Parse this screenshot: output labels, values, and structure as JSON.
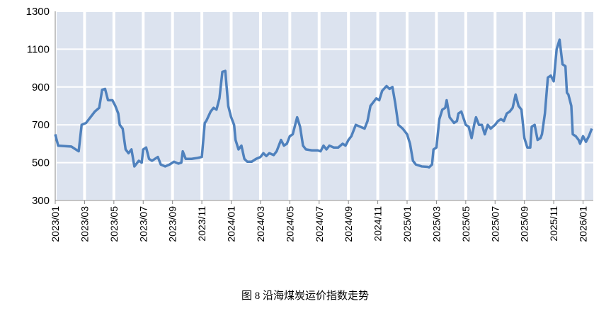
{
  "chart_data": {
    "type": "line",
    "title": "图 8 沿海煤炭运价指数走势",
    "x": [
      0,
      0.2,
      1.1,
      1.4,
      1.6,
      1.8,
      2.1,
      2.4,
      2.7,
      3.0,
      3.2,
      3.4,
      3.6,
      3.9,
      4.1,
      4.3,
      4.4,
      4.6,
      4.8,
      5.0,
      5.2,
      5.4,
      5.7,
      5.9,
      6.0,
      6.2,
      6.4,
      6.6,
      7.0,
      7.2,
      7.5,
      7.8,
      8.1,
      8.4,
      8.6,
      8.7,
      8.9,
      9.3,
      9.7,
      10.0,
      10.2,
      10.3,
      10.6,
      10.8,
      11.0,
      11.2,
      11.4,
      11.6,
      11.8,
      12.0,
      12.2,
      12.3,
      12.5,
      12.7,
      12.9,
      13.1,
      13.4,
      13.7,
      14.0,
      14.2,
      14.4,
      14.6,
      14.9,
      15.1,
      15.4,
      15.6,
      15.8,
      16.0,
      16.2,
      16.5,
      16.7,
      16.9,
      17.1,
      17.5,
      17.9,
      18.1,
      18.3,
      18.5,
      18.7,
      19.0,
      19.3,
      19.6,
      19.8,
      20.0,
      20.2,
      20.5,
      20.8,
      21.1,
      21.3,
      21.5,
      21.7,
      21.9,
      22.1,
      22.3,
      22.6,
      22.8,
      23.0,
      23.2,
      23.4,
      23.7,
      24.0,
      24.2,
      24.4,
      24.6,
      25.0,
      25.4,
      25.5,
      25.7,
      25.8,
      26.0,
      26.2,
      26.4,
      26.6,
      26.7,
      26.9,
      27.2,
      27.4,
      27.5,
      27.7,
      28.0,
      28.2,
      28.4,
      28.6,
      28.7,
      28.9,
      29.1,
      29.3,
      29.5,
      29.7,
      30.0,
      30.2,
      30.4,
      30.6,
      30.8,
      31.0,
      31.2,
      31.4,
      31.6,
      31.8,
      32.0,
      32.2,
      32.4,
      32.5,
      32.7,
      32.9,
      33.1,
      33.2,
      33.4,
      33.6,
      33.8,
      34.0,
      34.2,
      34.4,
      34.6,
      34.8,
      34.9,
      35.0,
      35.2,
      35.3,
      35.5,
      35.7,
      35.8,
      36.0,
      36.2,
      36.4,
      36.6
    ],
    "series": [
      {
        "color": "#4f81bd",
        "values": [
          650,
          590,
          585,
          570,
          560,
          700,
          710,
          740,
          770,
          790,
          885,
          890,
          830,
          830,
          800,
          760,
          700,
          680,
          570,
          550,
          570,
          480,
          510,
          500,
          570,
          580,
          520,
          510,
          530,
          490,
          480,
          490,
          505,
          495,
          500,
          560,
          520,
          520,
          525,
          530,
          710,
          720,
          770,
          790,
          780,
          840,
          980,
          985,
          800,
          740,
          700,
          620,
          570,
          590,
          520,
          505,
          505,
          520,
          530,
          550,
          535,
          550,
          540,
          560,
          620,
          590,
          600,
          640,
          650,
          740,
          690,
          590,
          570,
          565,
          565,
          560,
          590,
          570,
          590,
          580,
          580,
          600,
          590,
          620,
          640,
          700,
          690,
          680,
          720,
          800,
          820,
          840,
          830,
          880,
          905,
          890,
          900,
          810,
          700,
          680,
          650,
          600,
          510,
          490,
          480,
          478,
          475,
          490,
          570,
          580,
          730,
          780,
          790,
          830,
          740,
          710,
          720,
          760,
          770,
          700,
          690,
          630,
          710,
          740,
          700,
          700,
          650,
          700,
          680,
          700,
          720,
          730,
          720,
          760,
          770,
          790,
          860,
          800,
          780,
          630,
          580,
          580,
          690,
          700,
          620,
          630,
          650,
          760,
          950,
          960,
          930,
          1100,
          1150,
          1020,
          1010,
          870,
          860,
          800,
          650,
          640,
          620,
          600,
          640,
          610,
          640,
          680
        ]
      }
    ],
    "xlim": [
      0,
      36.7
    ],
    "xticks": [
      {
        "value": 0,
        "label": "2023/01"
      },
      {
        "value": 2,
        "label": "2023/03"
      },
      {
        "value": 4,
        "label": "2023/05"
      },
      {
        "value": 6,
        "label": "2023/07"
      },
      {
        "value": 8,
        "label": "2023/09"
      },
      {
        "value": 10,
        "label": "2023/11"
      },
      {
        "value": 12,
        "label": "2024/01"
      },
      {
        "value": 14,
        "label": "2024/03"
      },
      {
        "value": 16,
        "label": "2024/05"
      },
      {
        "value": 18,
        "label": "2024/07"
      },
      {
        "value": 20,
        "label": "2024/09"
      },
      {
        "value": 22,
        "label": "2024/11"
      },
      {
        "value": 24,
        "label": "2025/01"
      },
      {
        "value": 26,
        "label": "2025/03"
      },
      {
        "value": 28,
        "label": "2025/05"
      },
      {
        "value": 30,
        "label": "2025/07"
      },
      {
        "value": 32,
        "label": "2025/09"
      },
      {
        "value": 34,
        "label": "2025/11"
      },
      {
        "value": 36,
        "label": "2026/01"
      }
    ],
    "ylim": [
      300,
      1300
    ],
    "yticks": [
      300,
      500,
      700,
      900,
      1100,
      1300
    ],
    "grid": true
  }
}
